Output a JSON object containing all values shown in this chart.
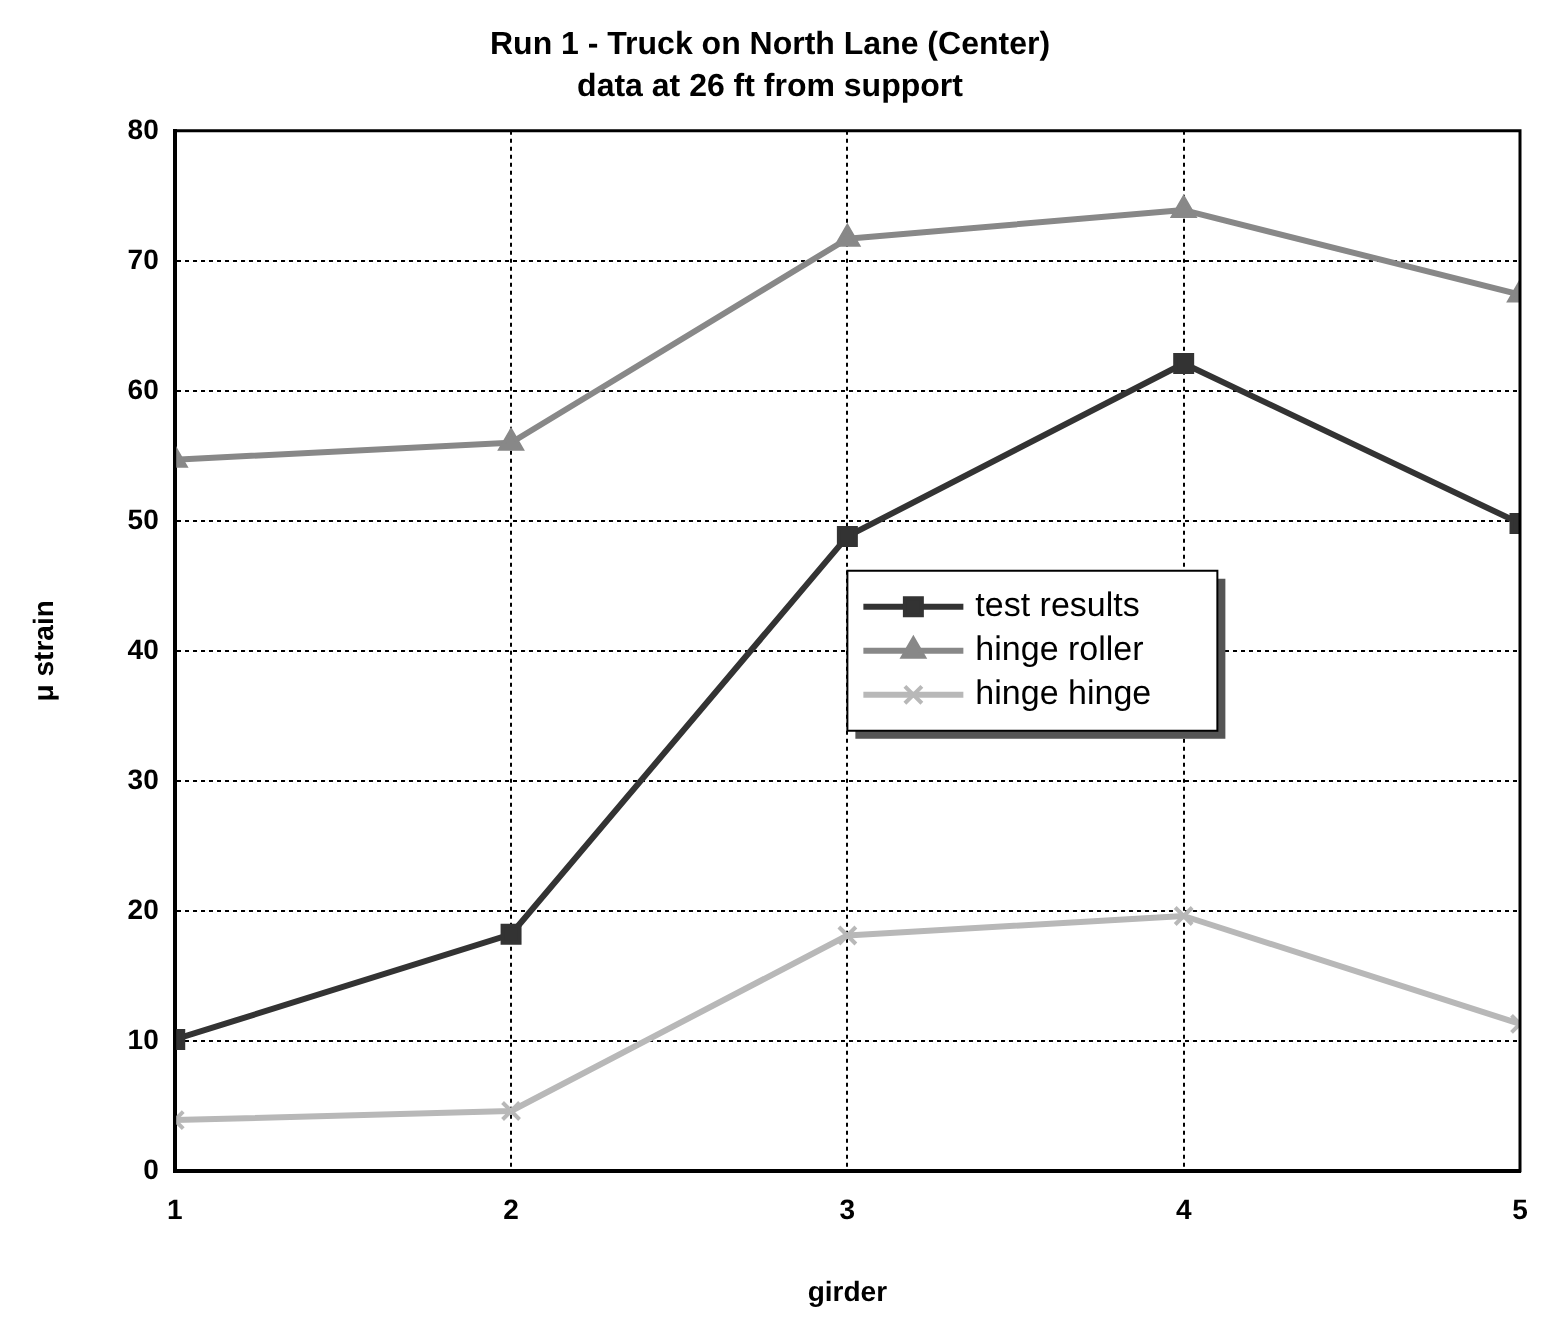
{
  "chart_data": {
    "type": "line",
    "title": "Run 1 - Truck on North Lane (Center)",
    "subtitle": "data at 26 ft from support",
    "xlabel": "girder",
    "ylabel": "μ strain",
    "x": [
      1,
      2,
      3,
      4,
      5
    ],
    "xlim": [
      1,
      5
    ],
    "xticks": [
      1,
      2,
      3,
      4,
      5
    ],
    "ylim": [
      0,
      80
    ],
    "yticks": [
      0,
      10,
      20,
      30,
      40,
      50,
      60,
      70,
      80
    ],
    "grid": true,
    "legend": "right",
    "series": [
      {
        "name": "test results",
        "color": "#333333",
        "marker": "square",
        "values": [
          10.1,
          18.2,
          48.8,
          62.1,
          49.8
        ]
      },
      {
        "name": "hinge roller",
        "color": "#888888",
        "marker": "triangle",
        "values": [
          54.7,
          56,
          71.7,
          73.9,
          67.4
        ]
      },
      {
        "name": "hinge hinge",
        "color": "#b8b8b8",
        "marker": "cross",
        "values": [
          3.9,
          4.6,
          18.1,
          19.6,
          11.3
        ]
      }
    ]
  }
}
